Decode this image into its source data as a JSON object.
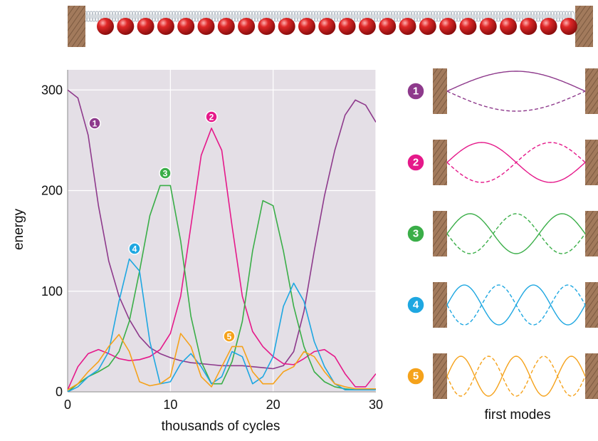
{
  "chart_data": {
    "type": "line",
    "xlabel": "thousands of cycles",
    "ylabel": "energy",
    "caption": "first modes",
    "x": [
      0,
      1,
      2,
      3,
      4,
      5,
      6,
      7,
      8,
      9,
      10,
      11,
      12,
      13,
      14,
      15,
      16,
      17,
      18,
      19,
      20,
      21,
      22,
      23,
      24,
      25,
      26,
      27,
      28,
      29,
      30
    ],
    "series": [
      {
        "name": "1",
        "color": "#8e3a8c",
        "values": [
          300,
          292,
          255,
          185,
          130,
          95,
          72,
          55,
          44,
          38,
          34,
          31,
          29,
          28,
          27,
          26,
          26,
          26,
          25,
          24,
          23,
          26,
          40,
          80,
          140,
          195,
          240,
          275,
          290,
          285,
          268
        ]
      },
      {
        "name": "2",
        "color": "#e5198a",
        "values": [
          2,
          25,
          38,
          42,
          38,
          33,
          31,
          32,
          35,
          42,
          58,
          95,
          165,
          235,
          262,
          240,
          165,
          95,
          60,
          45,
          35,
          28,
          27,
          33,
          40,
          42,
          35,
          18,
          5,
          5,
          18
        ]
      },
      {
        "name": "3",
        "color": "#3aae48",
        "values": [
          0,
          8,
          15,
          20,
          26,
          40,
          70,
          120,
          175,
          205,
          205,
          150,
          75,
          30,
          8,
          8,
          30,
          70,
          140,
          190,
          185,
          140,
          85,
          45,
          20,
          10,
          5,
          3,
          2,
          3,
          3
        ]
      },
      {
        "name": "4",
        "color": "#1ea7e1",
        "values": [
          0,
          5,
          15,
          22,
          40,
          90,
          132,
          120,
          50,
          8,
          10,
          28,
          38,
          25,
          8,
          15,
          40,
          35,
          8,
          15,
          35,
          85,
          108,
          90,
          50,
          25,
          8,
          2,
          2,
          2,
          2
        ]
      },
      {
        "name": "5",
        "color": "#f5a21b",
        "values": [
          2,
          8,
          20,
          30,
          45,
          57,
          40,
          10,
          6,
          8,
          15,
          58,
          45,
          15,
          5,
          25,
          45,
          45,
          20,
          8,
          8,
          20,
          25,
          40,
          35,
          20,
          8,
          5,
          3,
          3,
          3
        ]
      }
    ],
    "xlim": [
      0,
      30
    ],
    "ylim": [
      0,
      320
    ],
    "xticks": [
      0,
      10,
      20,
      30
    ],
    "yticks": [
      0,
      100,
      200,
      300
    ],
    "grid": true
  }
}
